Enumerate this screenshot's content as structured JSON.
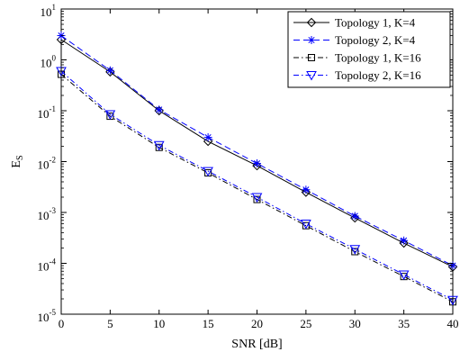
{
  "chart_data": {
    "type": "line",
    "title": "",
    "xlabel": "SNR [dB]",
    "ylabel": "E",
    "ylabel_subscript": "S",
    "xlim": [
      0,
      40
    ],
    "ylim": [
      1e-05,
      10
    ],
    "yscale": "log",
    "grid": false,
    "legend_position": "top-right",
    "x_ticks": [
      "0",
      "5",
      "10",
      "15",
      "20",
      "25",
      "30",
      "35",
      "40"
    ],
    "y_ticks": [
      {
        "base": "10",
        "exp": "1",
        "value": 10
      },
      {
        "base": "10",
        "exp": "0",
        "value": 1
      },
      {
        "base": "10",
        "exp": "-1",
        "value": 0.1
      },
      {
        "base": "10",
        "exp": "-2",
        "value": 0.01
      },
      {
        "base": "10",
        "exp": "-3",
        "value": 0.001
      },
      {
        "base": "10",
        "exp": "-4",
        "value": 0.0001
      },
      {
        "base": "10",
        "exp": "-5",
        "value": 1e-05
      }
    ],
    "x": [
      0,
      5,
      10,
      15,
      20,
      25,
      30,
      35,
      40
    ],
    "series": [
      {
        "name": "Topology 1, K=4",
        "values": [
          2.5,
          0.58,
          0.1,
          0.025,
          0.0083,
          0.0025,
          0.00078,
          0.00025,
          8.5e-05
        ],
        "color": "#000000",
        "linestyle": "solid",
        "marker": "diamond"
      },
      {
        "name": "Topology 2, K=4",
        "values": [
          3.0,
          0.62,
          0.105,
          0.03,
          0.0092,
          0.0028,
          0.00085,
          0.00028,
          9e-05
        ],
        "color": "#0000ff",
        "linestyle": "dashed",
        "marker": "asterisk"
      },
      {
        "name": "Topology 1, K=16",
        "values": [
          0.52,
          0.078,
          0.019,
          0.006,
          0.0018,
          0.00055,
          0.00017,
          5.5e-05,
          1.75e-05
        ],
        "color": "#000000",
        "linestyle": "dashdot",
        "marker": "square"
      },
      {
        "name": "Topology 2, K=16",
        "values": [
          0.6,
          0.085,
          0.021,
          0.0065,
          0.002,
          0.0006,
          0.00019,
          6e-05,
          1.9e-05
        ],
        "color": "#0000ff",
        "linestyle": "dashdot",
        "marker": "triangle-down"
      }
    ]
  }
}
